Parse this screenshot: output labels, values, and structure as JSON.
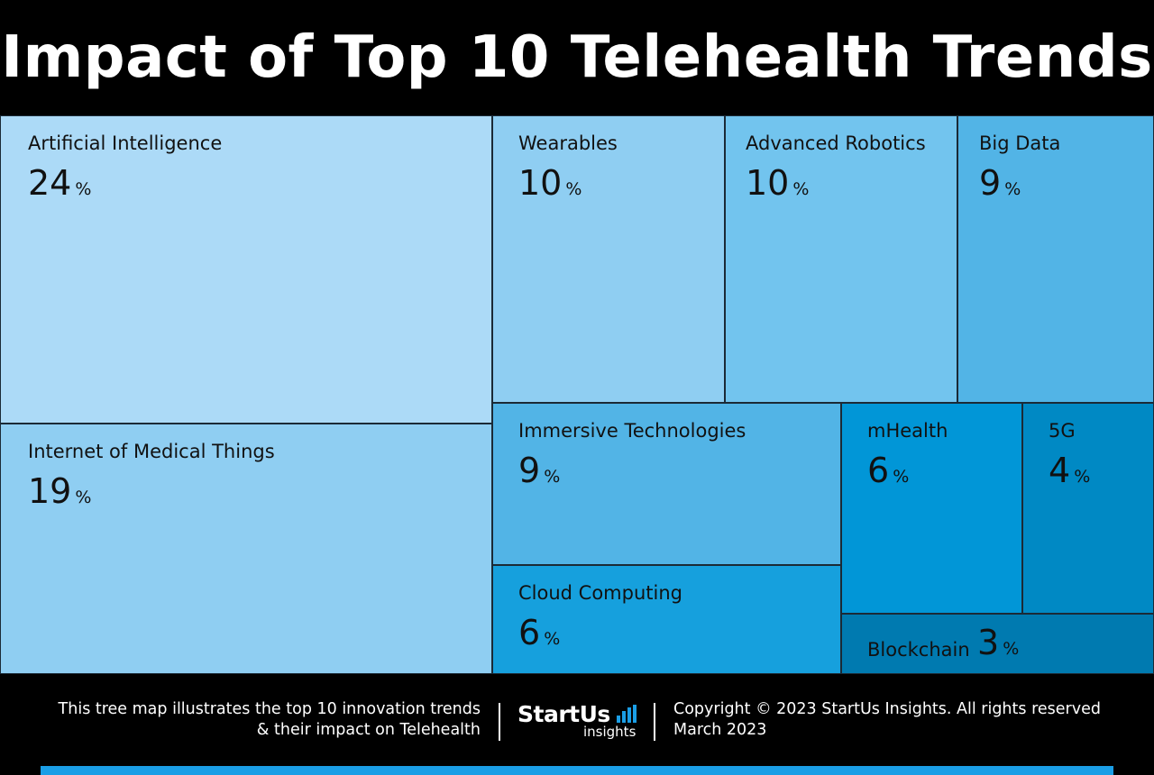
{
  "title": "Impact of Top 10 Telehealth Trends",
  "chart_data": {
    "type": "treemap",
    "unit": "%",
    "title": "Impact of Top 10 Telehealth Trends",
    "items": [
      {
        "name": "Artificial Intelligence",
        "value": 24,
        "color": "#acdaf7"
      },
      {
        "name": "Internet of Medical Things",
        "value": 19,
        "color": "#8fcef2"
      },
      {
        "name": "Wearables",
        "value": 10,
        "color": "#8fcef2"
      },
      {
        "name": "Advanced Robotics",
        "value": 10,
        "color": "#72c4ee"
      },
      {
        "name": "Big Data",
        "value": 9,
        "color": "#52b4e6"
      },
      {
        "name": "Immersive Technologies",
        "value": 9,
        "color": "#52b4e6"
      },
      {
        "name": "Cloud Computing",
        "value": 6,
        "color": "#16a0dd"
      },
      {
        "name": "mHealth",
        "value": 6,
        "color": "#0196d7"
      },
      {
        "name": "5G",
        "value": 4,
        "color": "#0089c4"
      },
      {
        "name": "Blockchain",
        "value": 3,
        "color": "#007ab0"
      }
    ]
  },
  "footer": {
    "description_line1": "This tree map illustrates the top 10 innovation trends",
    "description_line2": "& their impact on Telehealth",
    "logo_main": "StartUs",
    "logo_sub": "insights",
    "copyright": "Copyright © 2023 StartUs Insights. All rights reserved",
    "date": "March 2023",
    "accent_color": "#1a9ee6"
  }
}
